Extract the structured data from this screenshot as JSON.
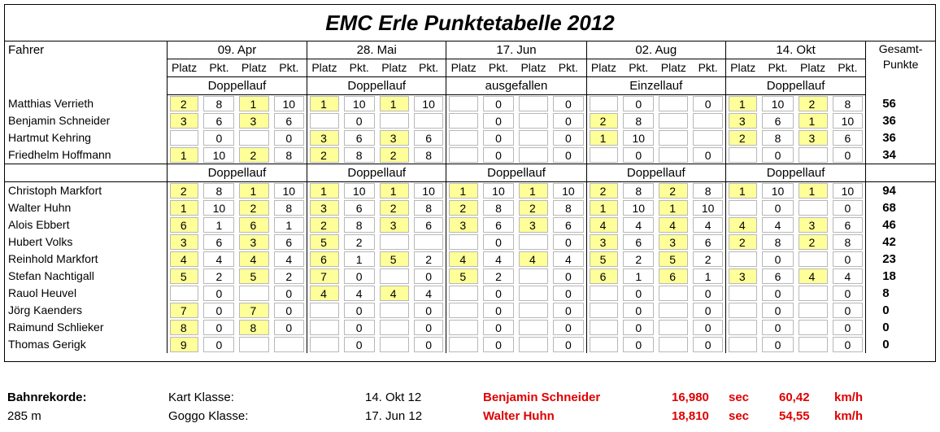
{
  "title": "EMC Erle  Punktetabelle 2012",
  "header": {
    "driver_label": "Fahrer",
    "total_label_line1": "Gesamt-",
    "total_label_line2": "Punkte",
    "events": [
      "09. Apr",
      "28. Mai",
      "17. Jun",
      "02. Aug",
      "14. Okt"
    ],
    "sub_labels": [
      "Platz",
      "Pkt.",
      "Platz",
      "Pkt."
    ]
  },
  "groups": [
    {
      "race_types": [
        "Doppellauf",
        "Doppellauf",
        "ausgefallen",
        "Einzellauf",
        "Doppellauf"
      ],
      "rows": [
        {
          "name": "Matthias Verrieth",
          "cells": [
            [
              "2",
              "8",
              "1",
              "10"
            ],
            [
              "1",
              "10",
              "1",
              "10"
            ],
            [
              "",
              "0",
              "",
              "0"
            ],
            [
              "",
              "0",
              "",
              "0"
            ],
            [
              "1",
              "10",
              "2",
              "8"
            ]
          ],
          "total": "56"
        },
        {
          "name": "Benjamin Schneider",
          "cells": [
            [
              "3",
              "6",
              "3",
              "6"
            ],
            [
              "",
              "0",
              "",
              ""
            ],
            [
              "",
              "0",
              "",
              "0"
            ],
            [
              "2",
              "8",
              "",
              ""
            ],
            [
              "3",
              "6",
              "1",
              "10"
            ]
          ],
          "total": "36"
        },
        {
          "name": "Hartmut Kehring",
          "cells": [
            [
              "",
              "0",
              "",
              "0"
            ],
            [
              "3",
              "6",
              "3",
              "6"
            ],
            [
              "",
              "0",
              "",
              "0"
            ],
            [
              "1",
              "10",
              "",
              ""
            ],
            [
              "2",
              "8",
              "3",
              "6"
            ]
          ],
          "total": "36"
        },
        {
          "name": "Friedhelm Hoffmann",
          "cells": [
            [
              "1",
              "10",
              "2",
              "8"
            ],
            [
              "2",
              "8",
              "2",
              "8"
            ],
            [
              "",
              "0",
              "",
              "0"
            ],
            [
              "",
              "0",
              "",
              "0"
            ],
            [
              "",
              "0",
              "",
              "0"
            ]
          ],
          "total": "34"
        }
      ]
    },
    {
      "race_types": [
        "Doppellauf",
        "Doppellauf",
        "Doppellauf",
        "Doppellauf",
        "Doppellauf"
      ],
      "rows": [
        {
          "name": "Christoph Markfort",
          "cells": [
            [
              "2",
              "8",
              "1",
              "10"
            ],
            [
              "1",
              "10",
              "1",
              "10"
            ],
            [
              "1",
              "10",
              "1",
              "10"
            ],
            [
              "2",
              "8",
              "2",
              "8"
            ],
            [
              "1",
              "10",
              "1",
              "10"
            ]
          ],
          "total": "94"
        },
        {
          "name": "Walter Huhn",
          "cells": [
            [
              "1",
              "10",
              "2",
              "8"
            ],
            [
              "3",
              "6",
              "2",
              "8"
            ],
            [
              "2",
              "8",
              "2",
              "8"
            ],
            [
              "1",
              "10",
              "1",
              "10"
            ],
            [
              "",
              "0",
              "",
              "0"
            ]
          ],
          "total": "68"
        },
        {
          "name": "Alois Ebbert",
          "cells": [
            [
              "6",
              "1",
              "6",
              "1"
            ],
            [
              "2",
              "8",
              "3",
              "6"
            ],
            [
              "3",
              "6",
              "3",
              "6"
            ],
            [
              "4",
              "4",
              "4",
              "4"
            ],
            [
              "4",
              "4",
              "3",
              "6"
            ]
          ],
          "total": "46"
        },
        {
          "name": "Hubert Volks",
          "cells": [
            [
              "3",
              "6",
              "3",
              "6"
            ],
            [
              "5",
              "2",
              "",
              ""
            ],
            [
              "",
              "0",
              "",
              "0"
            ],
            [
              "3",
              "6",
              "3",
              "6"
            ],
            [
              "2",
              "8",
              "2",
              "8"
            ]
          ],
          "total": "42"
        },
        {
          "name": "Reinhold Markfort",
          "cells": [
            [
              "4",
              "4",
              "4",
              "4"
            ],
            [
              "6",
              "1",
              "5",
              "2"
            ],
            [
              "4",
              "4",
              "4",
              "4"
            ],
            [
              "5",
              "2",
              "5",
              "2"
            ],
            [
              "",
              "0",
              "",
              "0"
            ]
          ],
          "total": "23"
        },
        {
          "name": "Stefan Nachtigall",
          "cells": [
            [
              "5",
              "2",
              "5",
              "2"
            ],
            [
              "7",
              "0",
              "",
              "0"
            ],
            [
              "5",
              "2",
              "",
              "0"
            ],
            [
              "6",
              "1",
              "6",
              "1"
            ],
            [
              "3",
              "6",
              "4",
              "4"
            ]
          ],
          "total": "18"
        },
        {
          "name": "Rauol Heuvel",
          "cells": [
            [
              "",
              "0",
              "",
              "0"
            ],
            [
              "4",
              "4",
              "4",
              "4"
            ],
            [
              "",
              "0",
              "",
              "0"
            ],
            [
              "",
              "0",
              "",
              "0"
            ],
            [
              "",
              "0",
              "",
              "0"
            ]
          ],
          "total": "8"
        },
        {
          "name": "Jörg Kaenders",
          "cells": [
            [
              "7",
              "0",
              "7",
              "0"
            ],
            [
              "",
              "0",
              "",
              "0"
            ],
            [
              "",
              "0",
              "",
              "0"
            ],
            [
              "",
              "0",
              "",
              "0"
            ],
            [
              "",
              "0",
              "",
              "0"
            ]
          ],
          "total": "0"
        },
        {
          "name": "Raimund Schlieker",
          "cells": [
            [
              "8",
              "0",
              "8",
              "0"
            ],
            [
              "",
              "0",
              "",
              "0"
            ],
            [
              "",
              "0",
              "",
              "0"
            ],
            [
              "",
              "0",
              "",
              "0"
            ],
            [
              "",
              "0",
              "",
              "0"
            ]
          ],
          "total": "0"
        },
        {
          "name": "Thomas Gerigk",
          "cells": [
            [
              "9",
              "0",
              "",
              ""
            ],
            [
              "",
              "0",
              "",
              "0"
            ],
            [
              "",
              "0",
              "",
              "0"
            ],
            [
              "",
              "0",
              "",
              "0"
            ],
            [
              "",
              "0",
              "",
              "0"
            ]
          ],
          "total": "0"
        }
      ]
    }
  ],
  "footer": {
    "records_label": "Bahnrekorde:",
    "track_length": "285 m",
    "records": [
      {
        "klass": "Kart Klasse:",
        "date": "14. Okt 12",
        "driver": "Benjamin Schneider",
        "time": "16,980",
        "time_unit": "sec",
        "speed": "60,42",
        "speed_unit": "km/h"
      },
      {
        "klass": "Goggo Klasse:",
        "date": "17. Jun 12",
        "driver": "Walter Huhn",
        "time": "18,810",
        "time_unit": "sec",
        "speed": "54,55",
        "speed_unit": "km/h"
      }
    ]
  },
  "colors": {
    "highlight": "#ffff99",
    "record_red": "#e00000"
  }
}
